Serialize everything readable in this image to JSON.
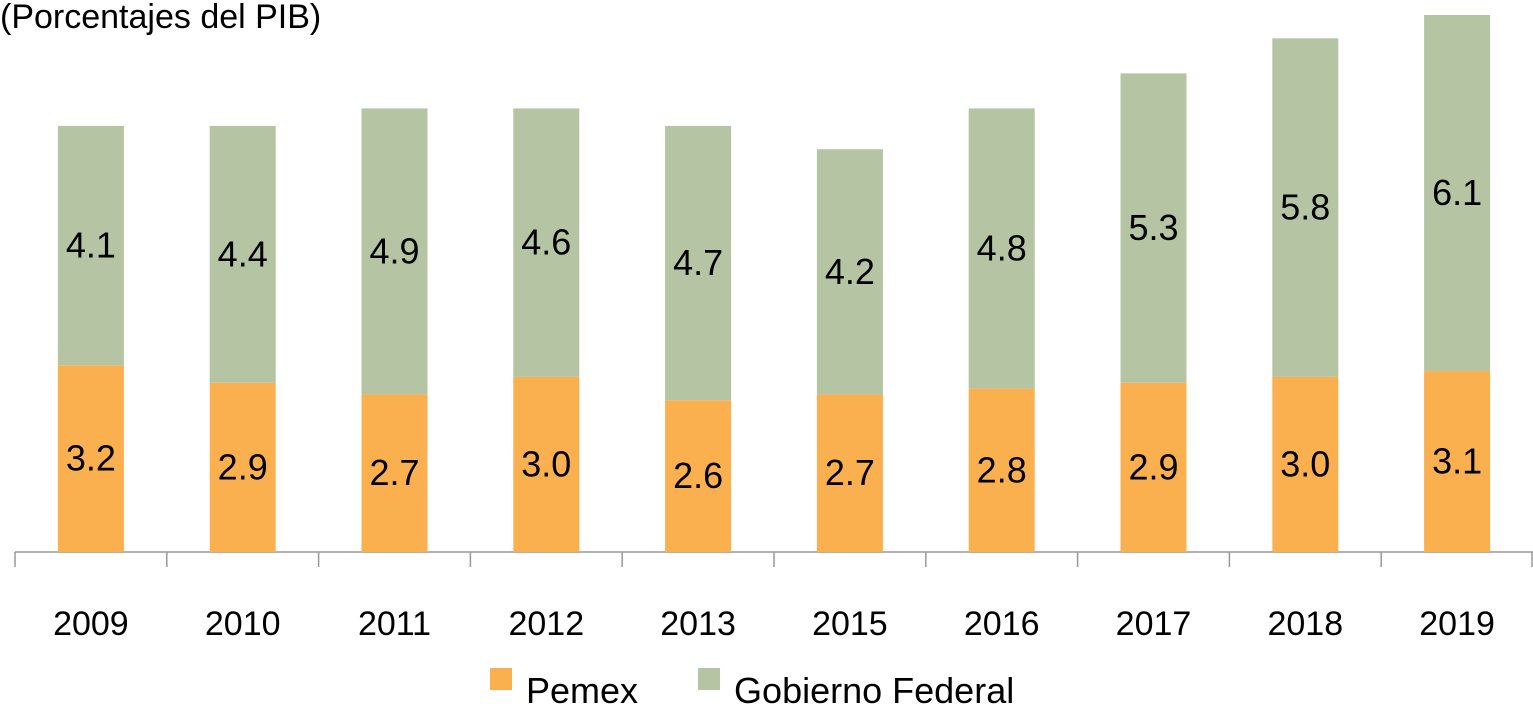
{
  "chart_data": {
    "type": "stacked-bar",
    "title": "(Porcentajes del PIB)",
    "categories": [
      "2009",
      "2010",
      "2011",
      "2012",
      "2013",
      "2015",
      "2016",
      "2017",
      "2018",
      "2019"
    ],
    "series": [
      {
        "name": "Pemex",
        "color": "#fbb050",
        "values": [
          3.2,
          2.9,
          2.7,
          3.0,
          2.6,
          2.7,
          2.8,
          2.9,
          3.0,
          3.1
        ],
        "value_labels": [
          "3.2",
          "2.9",
          "2.7",
          "3.0",
          "2.6",
          "2.7",
          "2.8",
          "2.9",
          "3.0",
          "3.1"
        ]
      },
      {
        "name": "Gobierno Federal",
        "color": "#b5c4a3",
        "values": [
          4.1,
          4.4,
          4.9,
          4.6,
          4.7,
          4.2,
          4.8,
          5.3,
          5.8,
          6.1
        ],
        "value_labels": [
          "4.1",
          "4.4",
          "4.9",
          "4.6",
          "4.7",
          "4.2",
          "4.8",
          "5.3",
          "5.8",
          "6.1"
        ]
      }
    ],
    "legend": "bottom"
  }
}
